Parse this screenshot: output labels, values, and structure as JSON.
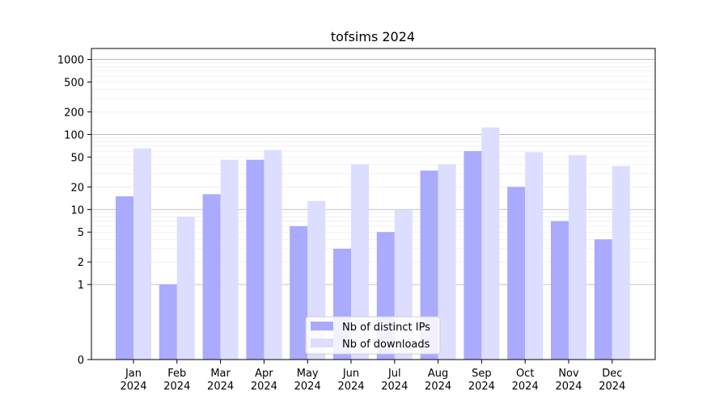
{
  "chart_data": {
    "type": "bar",
    "title": "tofsims 2024",
    "xlabel": "",
    "ylabel": "",
    "yscale": "symlog",
    "ylim": [
      0,
      1400
    ],
    "ytick_values": [
      0,
      1,
      2,
      5,
      10,
      20,
      50,
      100,
      200,
      500,
      1000
    ],
    "ytick_labels": [
      "0",
      "1",
      "2",
      "5",
      "10",
      "20",
      "50",
      "100",
      "200",
      "500",
      "1000"
    ],
    "categories": [
      "Jan",
      "Feb",
      "Mar",
      "Apr",
      "May",
      "Jun",
      "Jul",
      "Aug",
      "Sep",
      "Oct",
      "Nov",
      "Dec"
    ],
    "category_year": "2024",
    "series": [
      {
        "name": "Nb of distinct IPs",
        "color": "#aaaaff",
        "values": [
          15,
          1,
          16,
          46,
          6,
          3,
          5,
          33,
          60,
          20,
          7,
          4
        ]
      },
      {
        "name": "Nb of downloads",
        "color": "#ddddff",
        "values": [
          65,
          8,
          46,
          62,
          13,
          40,
          10,
          40,
          124,
          58,
          53,
          38
        ]
      }
    ],
    "grid": true,
    "legend": "bottom-center"
  }
}
